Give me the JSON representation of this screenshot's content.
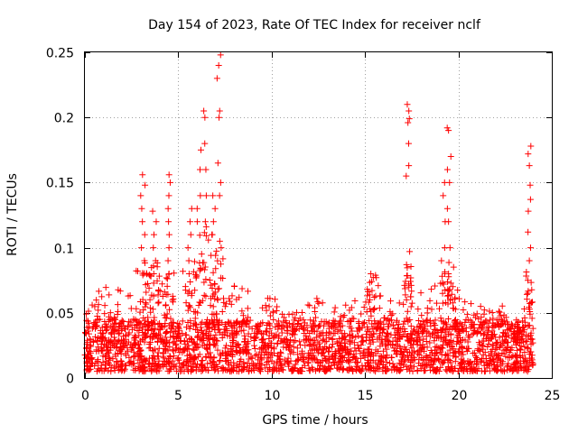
{
  "chart_data": {
    "type": "scatter",
    "title": "Day 154 of 2023, Rate Of TEC Index for receiver nclf",
    "xlabel": "GPS time / hours",
    "ylabel": "ROTI / TECUs",
    "xlim": [
      0,
      25
    ],
    "ylim": [
      0,
      0.25
    ],
    "x_ticks": [
      0,
      5,
      10,
      15,
      20,
      25
    ],
    "y_ticks": [
      0,
      0.05,
      0.1,
      0.15,
      0.2,
      0.25
    ],
    "x_tick_labels": [
      "0",
      "5",
      "10",
      "15",
      "20",
      "25"
    ],
    "y_tick_labels": [
      "0",
      "0.05",
      "0.1",
      "0.15",
      "0.2",
      "0.25"
    ],
    "grid": true,
    "marker": "plus",
    "color": "#ff0000",
    "series": [
      {
        "name": "ROTI",
        "x_range": [
          0,
          24
        ],
        "baseline_band": [
          0.005,
          0.045
        ],
        "envelope_upper": [
          [
            0.0,
            0.048
          ],
          [
            0.5,
            0.062
          ],
          [
            1.0,
            0.072
          ],
          [
            1.5,
            0.065
          ],
          [
            2.0,
            0.07
          ],
          [
            2.5,
            0.072
          ],
          [
            3.0,
            0.1
          ],
          [
            3.2,
            0.156
          ],
          [
            3.5,
            0.09
          ],
          [
            3.8,
            0.128
          ],
          [
            4.3,
            0.1
          ],
          [
            4.5,
            0.156
          ],
          [
            5.0,
            0.08
          ],
          [
            5.4,
            0.108
          ],
          [
            5.7,
            0.13
          ],
          [
            6.1,
            0.175
          ],
          [
            6.4,
            0.205
          ],
          [
            6.7,
            0.12
          ],
          [
            7.0,
            0.14
          ],
          [
            7.2,
            0.248
          ],
          [
            7.5,
            0.09
          ],
          [
            8.0,
            0.072
          ],
          [
            8.5,
            0.073
          ],
          [
            9.0,
            0.06
          ],
          [
            9.5,
            0.065
          ],
          [
            10.0,
            0.068
          ],
          [
            10.5,
            0.05
          ],
          [
            11.0,
            0.05
          ],
          [
            11.5,
            0.055
          ],
          [
            12.0,
            0.06
          ],
          [
            12.5,
            0.065
          ],
          [
            13.0,
            0.055
          ],
          [
            13.5,
            0.055
          ],
          [
            14.0,
            0.06
          ],
          [
            14.5,
            0.062
          ],
          [
            15.0,
            0.07
          ],
          [
            15.4,
            0.08
          ],
          [
            16.0,
            0.065
          ],
          [
            16.5,
            0.062
          ],
          [
            17.0,
            0.065
          ],
          [
            17.3,
            0.21
          ],
          [
            17.5,
            0.06
          ],
          [
            18.0,
            0.068
          ],
          [
            18.5,
            0.07
          ],
          [
            19.0,
            0.075
          ],
          [
            19.4,
            0.192
          ],
          [
            19.8,
            0.07
          ],
          [
            20.2,
            0.065
          ],
          [
            20.5,
            0.06
          ],
          [
            21.0,
            0.058
          ],
          [
            21.5,
            0.055
          ],
          [
            22.0,
            0.048
          ],
          [
            22.5,
            0.06
          ],
          [
            23.0,
            0.035
          ],
          [
            23.5,
            0.045
          ],
          [
            23.8,
            0.178
          ],
          [
            24.0,
            0.045
          ]
        ],
        "spikes": [
          {
            "x": 3.1,
            "values": [
              0.09,
              0.1,
              0.11,
              0.12,
              0.13,
              0.14,
              0.148,
              0.156
            ]
          },
          {
            "x": 3.7,
            "values": [
              0.08,
              0.09,
              0.1,
              0.11,
              0.12,
              0.128
            ]
          },
          {
            "x": 4.5,
            "values": [
              0.08,
              0.09,
              0.1,
              0.11,
              0.12,
              0.13,
              0.14,
              0.15,
              0.156
            ]
          },
          {
            "x": 5.6,
            "values": [
              0.08,
              0.09,
              0.1,
              0.11,
              0.12,
              0.13
            ]
          },
          {
            "x": 6.1,
            "values": [
              0.12,
              0.13,
              0.14,
              0.16,
              0.175
            ]
          },
          {
            "x": 6.4,
            "values": [
              0.12,
              0.14,
              0.16,
              0.18,
              0.2,
              0.205
            ]
          },
          {
            "x": 6.9,
            "values": [
              0.11,
              0.12,
              0.13,
              0.14
            ]
          },
          {
            "x": 7.2,
            "values": [
              0.1,
              0.105,
              0.14,
              0.15,
              0.165,
              0.2,
              0.205,
              0.23,
              0.24,
              0.248
            ]
          },
          {
            "x": 15.4,
            "values": [
              0.08
            ]
          },
          {
            "x": 17.3,
            "values": [
              0.087,
              0.097,
              0.155,
              0.163,
              0.18,
              0.196,
              0.199,
              0.205,
              0.21
            ]
          },
          {
            "x": 19.2,
            "values": [
              0.08,
              0.09,
              0.1,
              0.12,
              0.14,
              0.15
            ]
          },
          {
            "x": 19.5,
            "values": [
              0.08,
              0.1,
              0.12,
              0.13,
              0.15,
              0.16,
              0.17,
              0.19,
              0.192
            ]
          },
          {
            "x": 23.8,
            "values": [
              0.065,
              0.075,
              0.09,
              0.1,
              0.112,
              0.128,
              0.137,
              0.148,
              0.163,
              0.172,
              0.178
            ]
          }
        ]
      }
    ]
  }
}
